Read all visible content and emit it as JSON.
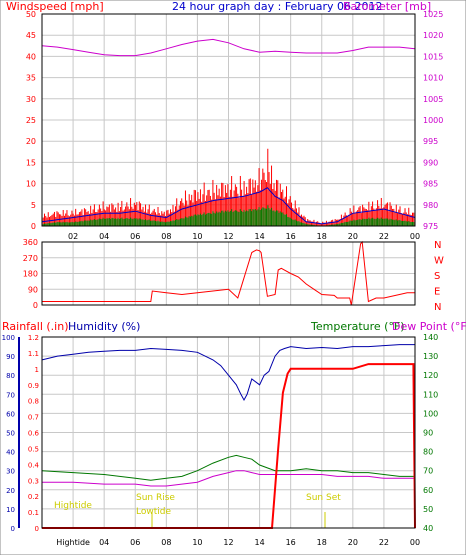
{
  "colors": {
    "wind": "#ff0000",
    "gust_green": "#008000",
    "wind_avg_blue": "#0000cc",
    "baro": "#cc00cc",
    "rain": "#ff0000",
    "humidity": "#0000aa",
    "temperature": "#007700",
    "dewpoint": "#cc00cc",
    "sun": "#cccc00",
    "axis": "#000000",
    "grid": "#c8c8c8"
  },
  "hour_ticks": [
    "02",
    "04",
    "06",
    "08",
    "10",
    "12",
    "14",
    "16",
    "18",
    "20",
    "22",
    "00"
  ],
  "chart_data": [
    {
      "type": "line",
      "title": "24 hour graph day : February 06 2012",
      "left_label": "Windspeed [mph]",
      "right_label": "Barometer [mb]",
      "y_left_ticks": [
        "50",
        "45",
        "40",
        "35",
        "30",
        "25",
        "20",
        "15",
        "10",
        "5",
        "0"
      ],
      "y_right_ticks": [
        "1025",
        "1020",
        "1015",
        "1010",
        "1005",
        "1000",
        "995",
        "990",
        "985",
        "980",
        "975"
      ],
      "ylim_left": [
        0,
        50
      ],
      "ylim_right": [
        975,
        1025
      ],
      "grid": true,
      "series": [
        {
          "x": [
            0,
            1,
            2,
            3,
            4,
            5,
            6,
            7,
            8,
            9,
            10,
            11,
            12,
            13,
            14,
            15,
            16,
            17,
            18,
            19,
            20,
            21,
            22,
            23,
            24
          ],
          "y": [
            1017.5,
            1017.2,
            1016.6,
            1016.0,
            1015.4,
            1015.2,
            1015.2,
            1015.8,
            1016.8,
            1017.8,
            1018.6,
            1019.0,
            1018.2,
            1016.8,
            1016.0,
            1016.2,
            1016.0,
            1015.8,
            1015.8,
            1015.8,
            1016.4,
            1017.2,
            1017.2,
            1017.2,
            1016.8
          ]
        }
      ],
      "wind_profile": {
        "x": [
          0,
          1,
          2,
          3,
          4,
          5,
          6,
          7,
          8,
          9,
          10,
          11,
          12,
          13,
          14,
          14.5,
          15,
          15.5,
          16,
          17,
          18,
          19,
          20,
          21,
          22,
          23,
          24
        ],
        "max": [
          3,
          4,
          4,
          5,
          6,
          6,
          7,
          5,
          4,
          8,
          10,
          11,
          12,
          12,
          14,
          19,
          13,
          11,
          8,
          2,
          1,
          2,
          5,
          6,
          7,
          5,
          4
        ],
        "avg": [
          1,
          1.5,
          2,
          2.5,
          3,
          3,
          3.5,
          2.5,
          2,
          4,
          5,
          6,
          6.5,
          7,
          8,
          9,
          7,
          6,
          4,
          1,
          0.5,
          1,
          3,
          3.5,
          4,
          3,
          2
        ],
        "min": [
          0.5,
          1,
          1,
          1.5,
          2,
          2,
          2,
          1.5,
          1,
          2,
          3,
          3.5,
          4,
          4,
          4.5,
          5,
          4,
          3.5,
          2,
          0.5,
          0,
          0.5,
          1.5,
          2,
          2,
          1.5,
          1
        ]
      }
    },
    {
      "type": "line",
      "right_labels": [
        "N",
        "W",
        "S",
        "E",
        "N"
      ],
      "y_left_ticks": [
        "360",
        "270",
        "180",
        "90",
        "0"
      ],
      "ylim": [
        0,
        360
      ],
      "series": [
        {
          "x": [
            0,
            7,
            7.1,
            8,
            9,
            10,
            11,
            12,
            12.6,
            12.7,
            13.5,
            13.8,
            14.0,
            14.1,
            14.5,
            15.0,
            15.2,
            15.4,
            16,
            16.5,
            17,
            17.5,
            18,
            18.8,
            19.0,
            19.8,
            19.9,
            20.5,
            20.6,
            21,
            21.5,
            22,
            23,
            23.5,
            24
          ],
          "y": [
            20,
            20,
            80,
            70,
            60,
            70,
            80,
            90,
            40,
            70,
            300,
            315,
            310,
            300,
            50,
            60,
            200,
            210,
            180,
            160,
            120,
            90,
            60,
            55,
            40,
            40,
            0,
            350,
            360,
            20,
            40,
            40,
            60,
            70,
            70
          ]
        }
      ]
    },
    {
      "type": "line",
      "left_label": "Rainfall (.in)",
      "humidity_label": "Humidity (%)",
      "right_label": "Temperature (°F)",
      "right_label_2": "Dew Point (°F)",
      "y_humidity_ticks": [
        "100",
        "90",
        "80",
        "70",
        "60",
        "50",
        "40",
        "30",
        "20",
        "10",
        "0"
      ],
      "y_rain_ticks": [
        "1.2",
        "1.1",
        "1",
        "0.9",
        "0.8",
        "0.7",
        "0.6",
        "0.5",
        "0.4",
        "0.3",
        "0.2",
        "0.1",
        "0"
      ],
      "y_temp_ticks": [
        "140",
        "130",
        "120",
        "110",
        "100",
        "90",
        "80",
        "70",
        "60",
        "50",
        "40"
      ],
      "x_ticks": [
        "Hightide",
        "04",
        "06",
        "08",
        "10",
        "12",
        "14",
        "16",
        "18",
        "20",
        "22",
        "00"
      ],
      "annotations": [
        "Hightide",
        "Sun Rise",
        "Lowtide",
        "Sun Set"
      ],
      "ylim_rain": [
        0,
        1.2
      ],
      "ylim_temp": [
        40,
        140
      ],
      "series": [
        {
          "name": "Humidity (%)",
          "x": [
            0,
            1,
            2,
            3,
            4,
            5,
            6,
            7,
            8,
            9,
            10,
            11,
            11.5,
            12,
            12.5,
            12.8,
            13,
            13.2,
            13.5,
            14,
            14.3,
            14.6,
            15,
            15.3,
            15.6,
            16,
            17,
            18,
            19,
            20,
            21,
            22,
            23,
            24
          ],
          "y": [
            88,
            90,
            91,
            92,
            92.5,
            93,
            93,
            94,
            93.5,
            93,
            92,
            88,
            85,
            80,
            75,
            70,
            67,
            70,
            78,
            75,
            80,
            82,
            90,
            93,
            94,
            95,
            94,
            94.5,
            94,
            95,
            95,
            95.5,
            96,
            96
          ]
        },
        {
          "name": "Rainfall (.in)",
          "x": [
            0,
            14.8,
            15.0,
            15.2,
            15.5,
            15.8,
            16,
            20,
            21,
            23.9,
            24
          ],
          "y": [
            0,
            0,
            0.25,
            0.5,
            0.85,
            0.97,
            1.0,
            1.0,
            1.03,
            1.03,
            0
          ]
        },
        {
          "name": "Temperature (°F)",
          "x": [
            0,
            2,
            4,
            6,
            7,
            8,
            9,
            10,
            11,
            12,
            12.5,
            13,
            13.5,
            14,
            15,
            16,
            17,
            18,
            19,
            20,
            21,
            22,
            23,
            24
          ],
          "y": [
            70,
            69,
            68,
            66,
            65,
            66,
            67,
            70,
            74,
            77,
            78,
            77,
            76,
            73,
            70,
            70,
            71,
            70,
            70,
            69,
            69,
            68,
            67,
            67
          ]
        },
        {
          "name": "Dew Point (°F)",
          "x": [
            0,
            2,
            4,
            6,
            7,
            8,
            9,
            10,
            11,
            12,
            12.5,
            13,
            13.5,
            14,
            15,
            16,
            17,
            18,
            19,
            20,
            21,
            22,
            23,
            24
          ],
          "y": [
            64,
            64,
            63,
            63,
            62,
            62,
            63,
            64,
            67,
            69,
            70,
            70,
            69,
            68,
            68,
            68,
            68,
            68,
            67,
            67,
            67,
            66,
            66,
            66
          ]
        }
      ]
    }
  ]
}
